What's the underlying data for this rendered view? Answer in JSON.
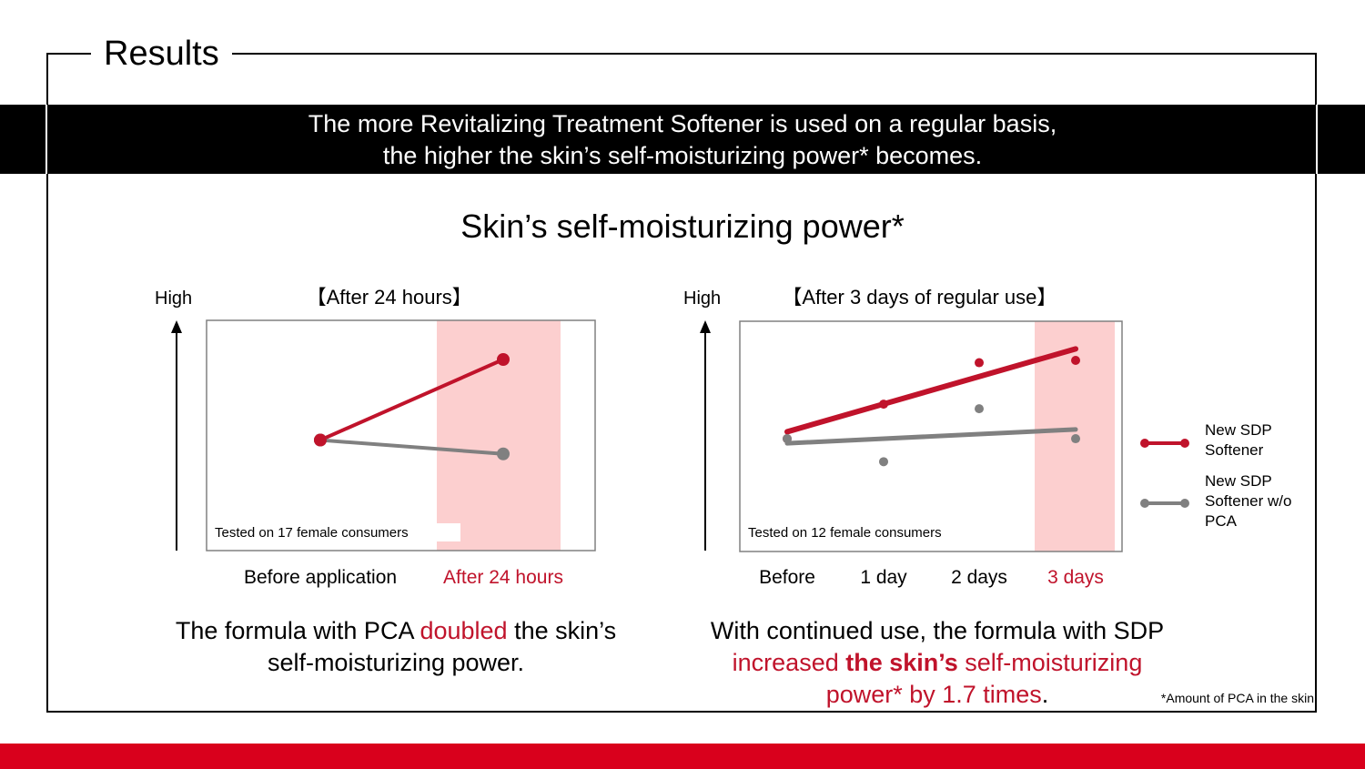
{
  "page": {
    "section_title": "Results",
    "banner": {
      "line1": "The more Revitalizing Treatment Softener is used on a regular basis,",
      "line2": "the higher the skin’s self-moisturizing power* becomes."
    },
    "main_title": "Skin’s self-moisturizing power*",
    "left_caption": {
      "a": "The formula with PCA ",
      "b": "doubled",
      "c": " the skin’s",
      "line2": "self-moisturizing power."
    },
    "right_caption": {
      "line1": "With continued use, the formula with SDP",
      "a": "increased ",
      "b": "the skin’s",
      "c": " self-moisturizing",
      "d": "power* by 1.7 times",
      "e": "."
    },
    "footnote": "*Amount of PCA in the skin",
    "legend": [
      {
        "label": "New SDP Softener",
        "color": "#c0132b"
      },
      {
        "label": "New SDP Softener w/o PCA",
        "color": "#808080"
      }
    ],
    "colors": {
      "accent_red": "#c0132b",
      "gray": "#808080",
      "highlight": "#fccfcf",
      "brand_bar": "#d9001c"
    }
  },
  "chart_data": [
    {
      "type": "line",
      "title": "【After 24 hours】",
      "ylabel": "High",
      "note": "Tested on 17 female consumers",
      "categories": [
        "Before application",
        "After 24 hours"
      ],
      "highlight_category": "After 24 hours",
      "ylim": [
        0,
        1
      ],
      "series": [
        {
          "name": "New SDP Softener",
          "color": "#c0132b",
          "values": [
            0.48,
            0.83
          ]
        },
        {
          "name": "New SDP Softener w/o PCA",
          "color": "#808080",
          "values": [
            0.48,
            0.42
          ]
        }
      ]
    },
    {
      "type": "scatter",
      "title": "【After 3 days of regular use】",
      "ylabel": "High",
      "note": "Tested on 12 female consumers",
      "categories": [
        "Before",
        "1 day",
        "2 days",
        "3 days"
      ],
      "highlight_category": "3 days",
      "ylim": [
        0,
        1
      ],
      "series": [
        {
          "name": "New SDP Softener",
          "color": "#c0132b",
          "values": [
            0.49,
            0.64,
            0.82,
            0.83
          ],
          "trend": [
            0.52,
            0.88
          ]
        },
        {
          "name": "New SDP Softener w/o PCA",
          "color": "#808080",
          "values": [
            0.49,
            0.39,
            0.62,
            0.49
          ],
          "trend": [
            0.47,
            0.53
          ]
        }
      ]
    }
  ]
}
